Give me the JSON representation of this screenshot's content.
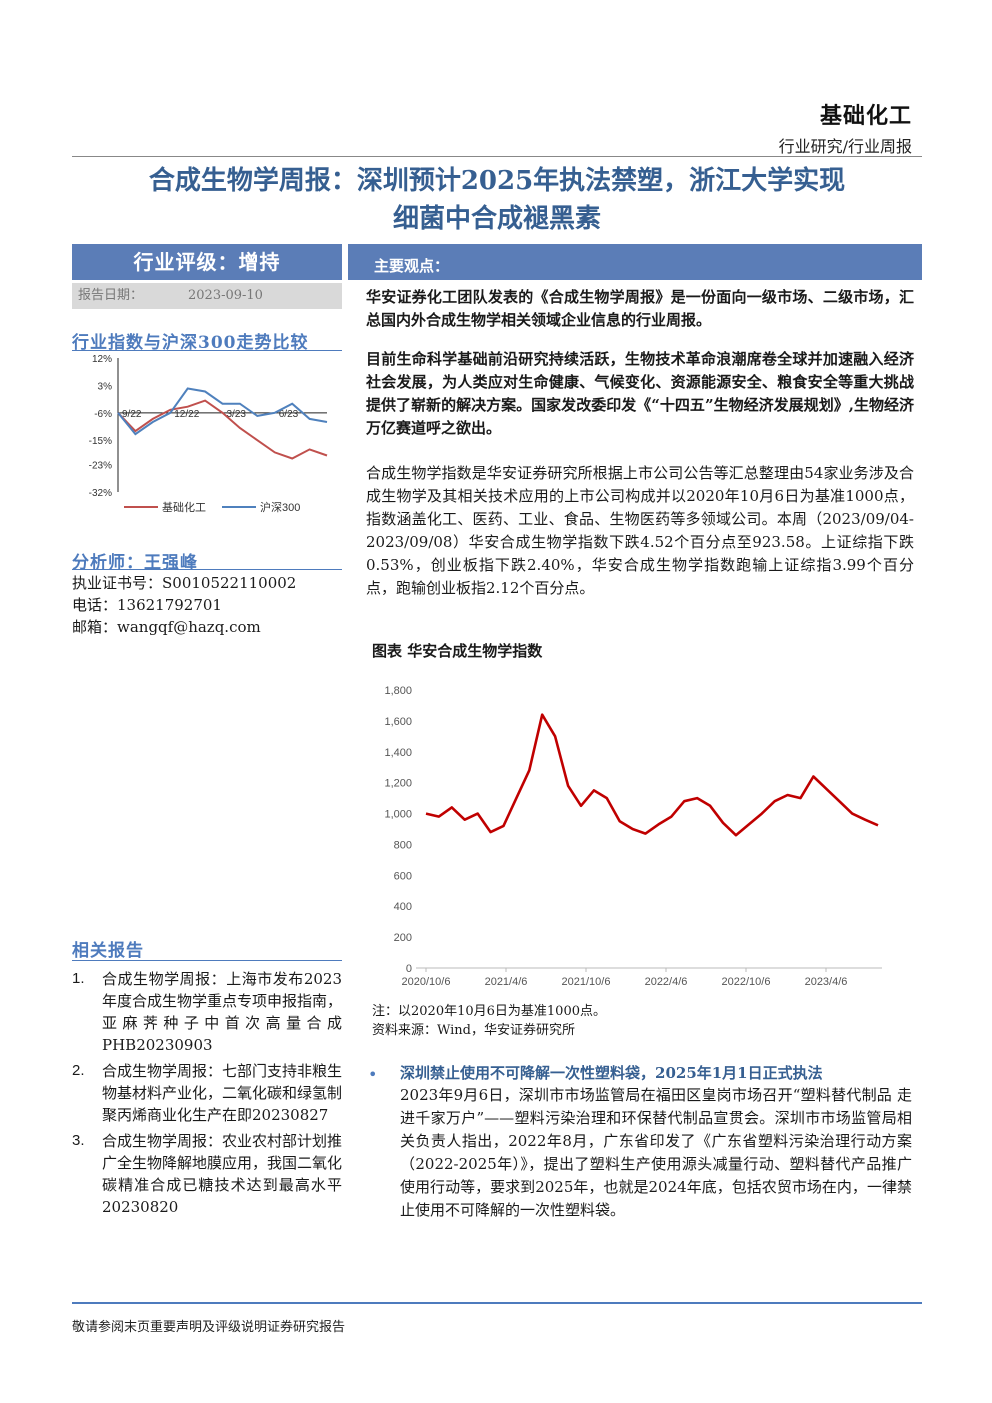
{
  "header": {
    "sector": "基础化工",
    "report_type": "行业研究/行业周报"
  },
  "title": {
    "line1": "合成生物学周报：深圳预计2025年执法禁塑，浙江大学实现",
    "line2": "细菌中合成褪黑素"
  },
  "rating": {
    "label": "行业评级：增持",
    "date_label": "报告日期：",
    "date_value": "2023-09-10"
  },
  "mini_chart": {
    "title": "行业指数与沪深300走势比较",
    "legend": [
      "基础化工",
      "沪深300"
    ],
    "colors": {
      "industry": "#c0504d",
      "hs300": "#4f81bd"
    }
  },
  "analyst": {
    "title": "分析师：王强峰",
    "cert": "执业证书号：S0010522110002",
    "phone": "电话：13621792701",
    "email": "邮箱：wangqf@hazq.com"
  },
  "related": {
    "title": "相关报告",
    "items": [
      {
        "num": "1.",
        "text": "合成生物学周报：上海市发布2023年度合成生物学重点专项申报指南，亚麻荠种子中首次高量合成PHB20230903"
      },
      {
        "num": "2.",
        "text": "合成生物学周报：七部门支持非粮生物基材料产业化，二氧化碳和绿氢制聚丙烯商业化生产在即20230827"
      },
      {
        "num": "3.",
        "text": "合成生物学周报：农业农村部计划推广全生物降解地膜应用，我国二氧化碳精准合成已糖技术达到最高水平20230820"
      }
    ]
  },
  "main": {
    "label": "主要观点：",
    "p1": "华安证券化工团队发表的《合成生物学周报》是一份面向一级市场、二级市场，汇总国内外合成生物学相关领域企业信息的行业周报。",
    "p2": "目前生命科学基础前沿研究持续活跃，生物技术革命浪潮席卷全球并加速融入经济社会发展，为人类应对生命健康、气候变化、资源能源安全、粮食安全等重大挑战提供了崭新的解决方案。国家发改委印发《“十四五”生物经济发展规划》,生物经济万亿赛道呼之欲出。",
    "p3": "合成生物学指数是华安证券研究所根据上市公司公告等汇总整理由54家业务涉及合成生物学及其相关技术应用的上市公司构成并以2020年10月6日为基准1000点，指数涵盖化工、医药、工业、食品、生物医药等多领域公司。本周（2023/09/04-2023/09/08）华安合成生物学指数下跌4.52个百分点至923.58。上证综指下跌0.53%，创业板指下跌2.40%，华安合成生物学指数跑输上证综指3.99个百分点，跑输创业板指2.12个百分点。"
  },
  "figure": {
    "title": "图表 华安合成生物学指数",
    "note": "注：以2020年10月6日为基准1000点。",
    "source": "资料来源：Wind，华安证券研究所"
  },
  "bullet": {
    "head": "深圳禁止使用不可降解一次性塑料袋，2025年1月1日正式执法",
    "body": "2023年9月6日，深圳市市场监管局在福田区皇岗市场召开“塑料替代制品 走进千家万户”——塑料污染治理和环保替代制品宣贯会。深圳市市场监管局相关负责人指出，2022年8月，广东省印发了《广东省塑料污染治理行动方案（2022-2025年）》，提出了塑料生产使用源头减量行动、塑料替代产品推广使用行动等，要求到2025年，也就是2024年底，包括农贸市场在内，一律禁止使用不可降解的一次性塑料袋。"
  },
  "footer": {
    "text": "敬请参阅末页重要声明及评级说明证券研究报告"
  },
  "chart_data": [
    {
      "type": "line",
      "title": "",
      "x_ticks": [
        "9/22",
        "12/22",
        "3/23",
        "6/23"
      ],
      "y_ticks": [
        "12%",
        "3%",
        "-6%",
        "-15%",
        "-23%",
        "-32%"
      ],
      "ylim": [
        -32,
        12
      ],
      "series": [
        {
          "name": "基础化工",
          "color": "#c0504d",
          "x": [
            "9/22",
            "10/22",
            "11/22",
            "12/22",
            "1/23",
            "2/23",
            "3/23",
            "4/23",
            "5/23",
            "6/23",
            "7/23",
            "8/23",
            "9/23"
          ],
          "values": [
            -6,
            -12,
            -8,
            -5,
            -4,
            -2,
            -6,
            -11,
            -15,
            -19,
            -21,
            -18,
            -20
          ]
        },
        {
          "name": "沪深300",
          "color": "#4f81bd",
          "x": [
            "9/22",
            "10/22",
            "11/22",
            "12/22",
            "1/23",
            "2/23",
            "3/23",
            "4/23",
            "5/23",
            "6/23",
            "7/23",
            "8/23",
            "9/23"
          ],
          "values": [
            -6,
            -13,
            -9,
            -6,
            2,
            1,
            -3,
            -3,
            -7,
            -6,
            -3,
            -8,
            -9
          ]
        }
      ]
    },
    {
      "type": "line",
      "title": "图表 华安合成生物学指数",
      "x_ticks": [
        "2020/10/6",
        "2021/4/6",
        "2021/10/6",
        "2022/4/6",
        "2022/10/6",
        "2023/4/6"
      ],
      "y_ticks": [
        "1,800",
        "1,600",
        "1,400",
        "1,200",
        "1,000",
        "800",
        "600",
        "400",
        "200",
        "0"
      ],
      "ylim": [
        0,
        1800
      ],
      "series": [
        {
          "name": "华安合成生物学指数",
          "color": "#c00000",
          "x": [
            "2020/10",
            "2020/11",
            "2020/12",
            "2021/1",
            "2021/2",
            "2021/3",
            "2021/4",
            "2021/5",
            "2021/6",
            "2021/7",
            "2021/8",
            "2021/9",
            "2021/10",
            "2021/11",
            "2021/12",
            "2022/1",
            "2022/2",
            "2022/3",
            "2022/4",
            "2022/5",
            "2022/6",
            "2022/7",
            "2022/8",
            "2022/9",
            "2022/10",
            "2022/11",
            "2022/12",
            "2023/1",
            "2023/2",
            "2023/3",
            "2023/4",
            "2023/5",
            "2023/6",
            "2023/7",
            "2023/8",
            "2023/9"
          ],
          "values": [
            1000,
            980,
            1040,
            960,
            1000,
            880,
            920,
            1100,
            1280,
            1640,
            1500,
            1180,
            1050,
            1150,
            1100,
            950,
            900,
            870,
            930,
            980,
            1080,
            1100,
            1050,
            940,
            860,
            930,
            1000,
            1080,
            1120,
            1100,
            1240,
            1160,
            1080,
            1000,
            960,
            924
          ]
        }
      ]
    }
  ]
}
